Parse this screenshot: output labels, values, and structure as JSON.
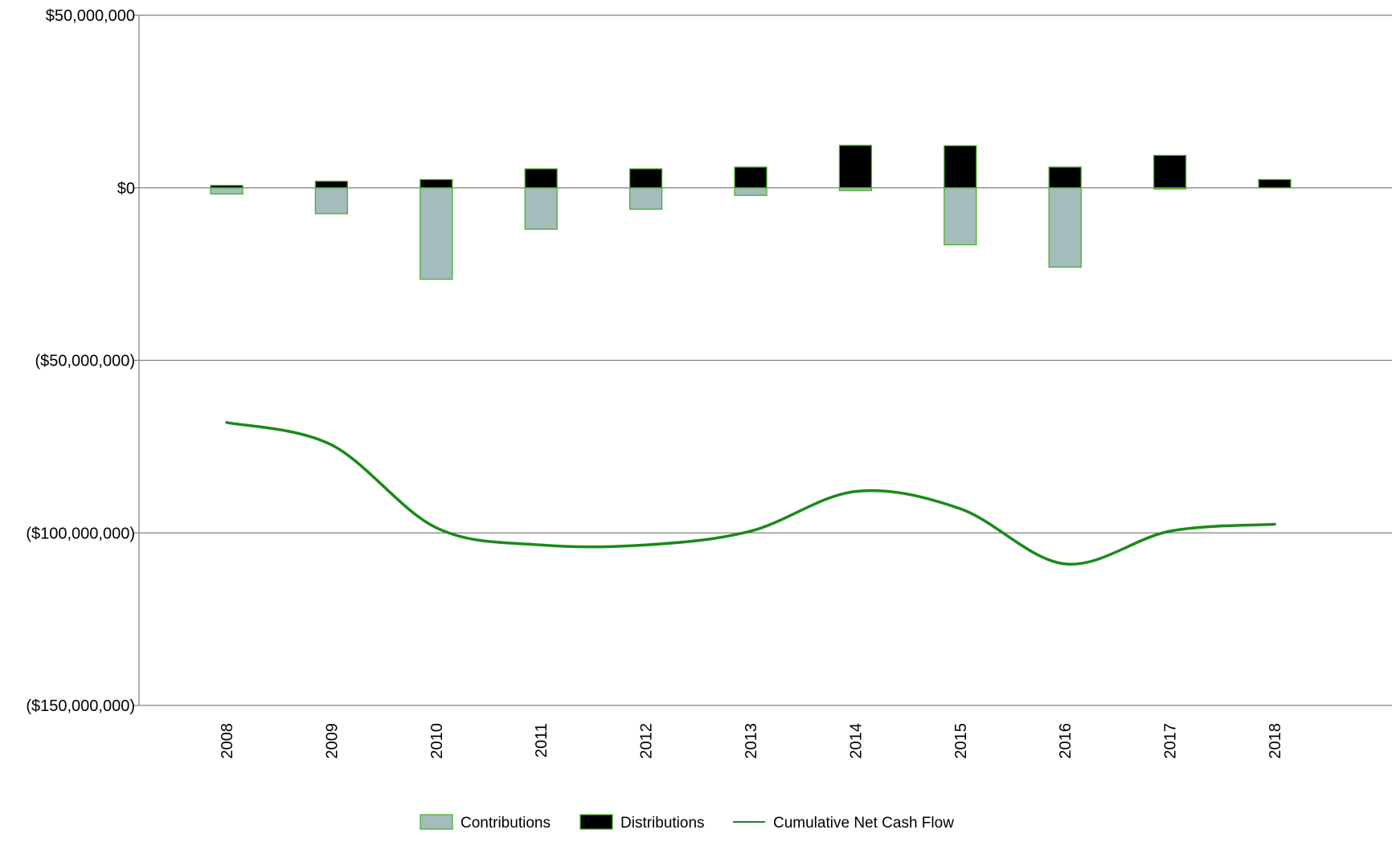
{
  "chart_data": {
    "type": "bar",
    "title": "",
    "xlabel": "",
    "ylabel": "",
    "categories": [
      "2008",
      "2009",
      "2010",
      "2011",
      "2012",
      "2013",
      "2014",
      "2015",
      "2016",
      "2017",
      "2018"
    ],
    "ylim": [
      -150000000,
      50000000
    ],
    "y_ticks": [
      50000000,
      0,
      -50000000,
      -100000000,
      -150000000
    ],
    "y_tick_labels": [
      "$50,000,000",
      "$0",
      "($50,000,000)",
      "($100,000,000)",
      "($150,000,000)"
    ],
    "grid": "horizontal",
    "legend_position": "bottom",
    "series": [
      {
        "name": "Contributions",
        "kind": "bar",
        "color": "#a3bcbc",
        "edge_color": "#4caf2a",
        "values": [
          -1800000,
          -7500000,
          -26500000,
          -12000000,
          -6200000,
          -2200000,
          -800000,
          -16500000,
          -23000000,
          -300000,
          0
        ]
      },
      {
        "name": "Distributions",
        "kind": "bar",
        "color": "#000000",
        "edge_color": "#4caf2a",
        "values": [
          700000,
          1900000,
          2400000,
          5500000,
          5500000,
          6000000,
          12300000,
          12200000,
          6000000,
          9400000,
          2400000
        ]
      },
      {
        "name": "Cumulative Net Cash Flow",
        "kind": "line",
        "color": "#1a8a1a",
        "values": [
          -68000000,
          -74500000,
          -98500000,
          -103500000,
          -103500000,
          -99500000,
          -88000000,
          -93000000,
          -109000000,
          -99500000,
          -97500000
        ]
      }
    ]
  }
}
